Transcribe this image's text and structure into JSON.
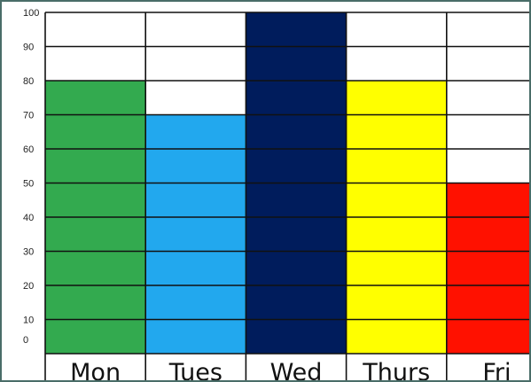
{
  "chart_data": {
    "type": "bar",
    "categories": [
      "Mon",
      "Tues",
      "Wed",
      "Thurs",
      "Fri"
    ],
    "values": [
      80,
      70,
      100,
      80,
      50
    ],
    "colors": [
      "#33aa4f",
      "#22a8ee",
      "#001c5c",
      "#ffff00",
      "#ff1100"
    ],
    "title": "",
    "xlabel": "",
    "ylabel": "",
    "ylim": [
      0,
      100
    ],
    "yticks": [
      0,
      10,
      20,
      30,
      40,
      50,
      60,
      70,
      80,
      90,
      100
    ],
    "grid": true
  }
}
